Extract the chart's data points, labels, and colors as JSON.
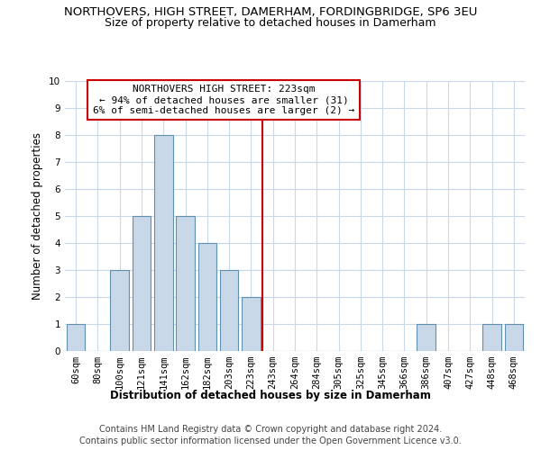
{
  "title": "NORTHOVERS, HIGH STREET, DAMERHAM, FORDINGBRIDGE, SP6 3EU",
  "subtitle": "Size of property relative to detached houses in Damerham",
  "xlabel": "Distribution of detached houses by size in Damerham",
  "ylabel": "Number of detached properties",
  "bar_labels": [
    "60sqm",
    "80sqm",
    "100sqm",
    "121sqm",
    "141sqm",
    "162sqm",
    "182sqm",
    "203sqm",
    "223sqm",
    "243sqm",
    "264sqm",
    "284sqm",
    "305sqm",
    "325sqm",
    "345sqm",
    "366sqm",
    "386sqm",
    "407sqm",
    "427sqm",
    "448sqm",
    "468sqm"
  ],
  "bar_heights": [
    1,
    0,
    3,
    5,
    8,
    5,
    4,
    3,
    2,
    0,
    0,
    0,
    0,
    0,
    0,
    0,
    1,
    0,
    0,
    1,
    1
  ],
  "bar_color": "#c8d8e8",
  "bar_edge_color": "#6090b0",
  "marker_index": 8,
  "marker_color": "#cc0000",
  "annotation_text": "NORTHOVERS HIGH STREET: 223sqm\n← 94% of detached houses are smaller (31)\n6% of semi-detached houses are larger (2) →",
  "ylim": [
    0,
    10
  ],
  "yticks": [
    0,
    1,
    2,
    3,
    4,
    5,
    6,
    7,
    8,
    9,
    10
  ],
  "footnote1": "Contains HM Land Registry data © Crown copyright and database right 2024.",
  "footnote2": "Contains public sector information licensed under the Open Government Licence v3.0.",
  "bg_color": "#ffffff",
  "grid_color": "#c8d8e8",
  "annotation_box_color": "#cc0000",
  "title_fontsize": 9.5,
  "subtitle_fontsize": 9,
  "axis_label_fontsize": 8.5,
  "tick_fontsize": 7.5,
  "annotation_fontsize": 8,
  "footnote_fontsize": 7
}
